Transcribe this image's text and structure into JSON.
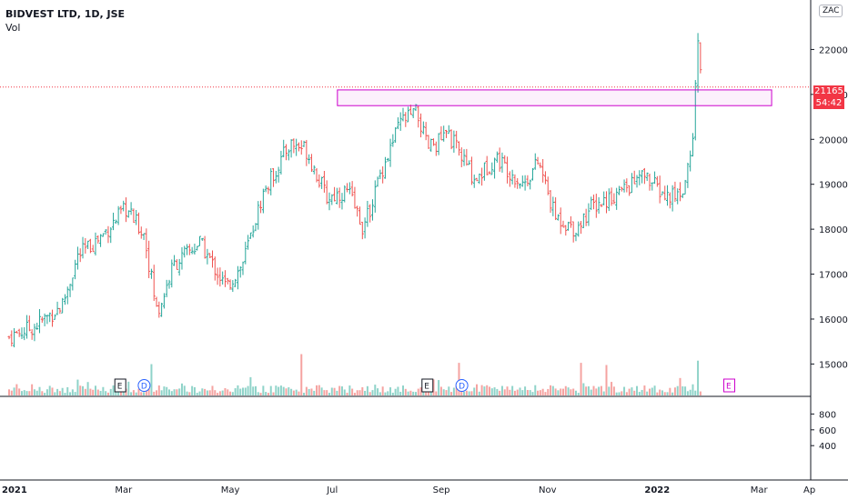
{
  "header": {
    "symbol": "BIDVEST LTD, 1D, JSE",
    "indicator": "Vol",
    "currency": "ZAC"
  },
  "price": {
    "current": "21165",
    "countdown": "54:42",
    "current_value": 21165
  },
  "colors": {
    "up": "#26a69a",
    "down": "#ef5350",
    "accent_box": "#cc00cc",
    "price_line": "#f23645",
    "event_blue": "#2962ff"
  },
  "events": [
    {
      "label": "E",
      "month": 2.1
    },
    {
      "label": "D",
      "month": 2.55
    },
    {
      "label": "E",
      "month": 7.9
    },
    {
      "label": "D",
      "month": 8.55
    },
    {
      "label": "E",
      "month": 13.6,
      "style": "upcoming"
    }
  ],
  "chart_data": {
    "type": "candlestick",
    "x_axis": {
      "labels": [
        "2021",
        "Mar",
        "May",
        "Jul",
        "Sep",
        "Nov",
        "2022",
        "Mar",
        "Ap"
      ],
      "bold": [
        "2021",
        "2022"
      ]
    },
    "y_axis": {
      "ticks": [
        15000,
        16000,
        17000,
        18000,
        19000,
        20000,
        21000,
        22000
      ],
      "range": [
        14300,
        23000
      ]
    },
    "volume_axis": {
      "ticks": [
        400,
        600,
        800
      ]
    },
    "resistance_zone": {
      "low": 20750,
      "high": 21100,
      "from_month": 6.2,
      "to_month": 14.4
    },
    "price_path": [
      [
        0,
        15600
      ],
      [
        0.5,
        15850
      ],
      [
        1.0,
        16300
      ],
      [
        1.3,
        17400
      ],
      [
        1.7,
        17800
      ],
      [
        2.2,
        18450
      ],
      [
        2.55,
        17900
      ],
      [
        2.8,
        16100
      ],
      [
        3.1,
        17200
      ],
      [
        3.6,
        17700
      ],
      [
        4.1,
        16700
      ],
      [
        4.4,
        17200
      ],
      [
        4.8,
        18800
      ],
      [
        5.3,
        19900
      ],
      [
        5.6,
        19800
      ],
      [
        6.0,
        18700
      ],
      [
        6.4,
        18850
      ],
      [
        6.7,
        18000
      ],
      [
        7.0,
        19200
      ],
      [
        7.4,
        20400
      ],
      [
        7.7,
        20600
      ],
      [
        7.9,
        19800
      ],
      [
        8.3,
        20100
      ],
      [
        8.8,
        19100
      ],
      [
        9.2,
        19600
      ],
      [
        9.7,
        19000
      ],
      [
        10.0,
        19500
      ],
      [
        10.3,
        18300
      ],
      [
        10.7,
        18000
      ],
      [
        11.0,
        18500
      ],
      [
        11.5,
        18800
      ],
      [
        12.0,
        19200
      ],
      [
        12.4,
        18700
      ],
      [
        12.7,
        18800
      ],
      [
        12.9,
        19800
      ],
      [
        13.0,
        22200
      ],
      [
        13.1,
        21165
      ]
    ],
    "volume_spikes": [
      {
        "month": 5.5,
        "value": 100
      },
      {
        "month": 8.5,
        "value": 75
      },
      {
        "month": 10.8,
        "value": 75
      },
      {
        "month": 11.3,
        "value": 70
      },
      {
        "month": 13.0,
        "value": 80
      },
      {
        "month": 2.7,
        "value": 72
      }
    ]
  }
}
